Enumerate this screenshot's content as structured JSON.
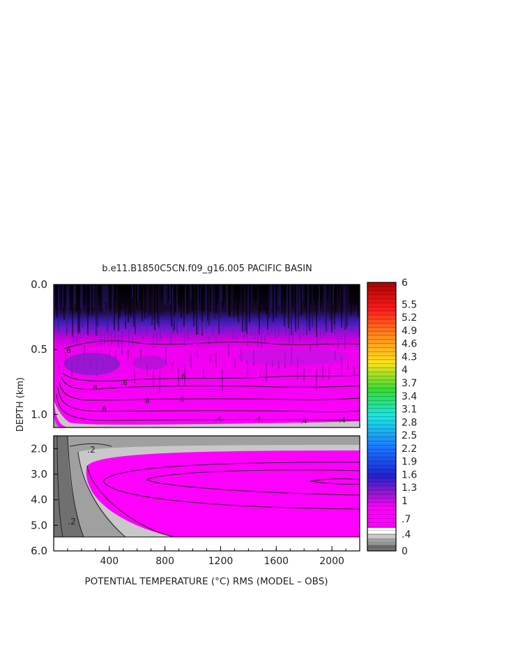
{
  "chart_data": {
    "type": "heatmap",
    "title": "b.e11.B1850C5CN.f09_g16.005 PACIFIC BASIN",
    "xlabel": "POTENTIAL TEMPERATURE (°C) RMS (MODEL – OBS)",
    "ylabel": "DEPTH (km)",
    "xlim": [
      0,
      2200
    ],
    "x_ticks": [
      "400",
      "800",
      "1200",
      "1600",
      "2000"
    ],
    "upper_panel": {
      "ylim": [
        0.0,
        1.1
      ],
      "y_ticks": [
        "0.0",
        "0.5",
        "1.0"
      ],
      "contour_labels": [
        ".6",
        ".8",
        ".6",
        ".6",
        ".6",
        ".6",
        ".6",
        ".4",
        ".4",
        ".4",
        ".4"
      ]
    },
    "lower_panel": {
      "ylim": [
        1.5,
        6.0
      ],
      "y_ticks": [
        "2.0",
        "3.0",
        "4.0",
        "5.0",
        "6.0"
      ],
      "contour_labels": [
        ".2",
        ".2"
      ]
    },
    "colorbar": {
      "labels": [
        "6",
        "5.5",
        "5.2",
        "4.9",
        "4.6",
        "4.3",
        "4",
        "3.7",
        "3.4",
        "3.1",
        "2.8",
        "2.5",
        "2.2",
        "1.9",
        "1.6",
        "1.3",
        "1",
        ".7",
        ".4",
        "0"
      ],
      "label_values": [
        6,
        5.5,
        5.2,
        4.9,
        4.6,
        4.3,
        4,
        3.7,
        3.4,
        3.1,
        2.8,
        2.5,
        2.2,
        1.9,
        1.6,
        1.3,
        1,
        0.7,
        0.4,
        0
      ],
      "colors": {
        "dark_red": "#b00000",
        "red": "#ff1a1a",
        "orange": "#ff8c1a",
        "yellow": "#ffe11a",
        "green": "#33dd33",
        "cyan": "#1ae6e6",
        "blue": "#1a73ff",
        "dark_blue": "#2222cc",
        "violet": "#8a1acc",
        "magenta": "#ff00ff",
        "white": "#ffffff",
        "light_gray": "#c8c8c8",
        "mid_gray": "#a0a0a0",
        "dark_gray": "#707070"
      }
    }
  }
}
